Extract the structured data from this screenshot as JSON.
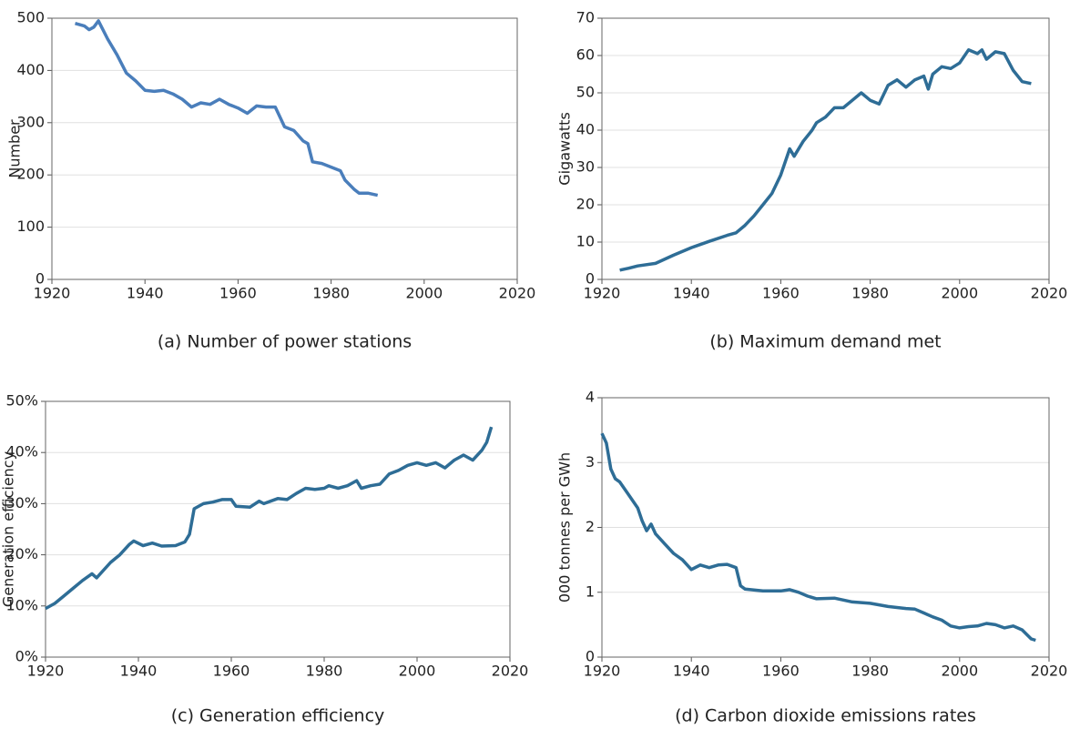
{
  "chart_data": [
    {
      "type": "line",
      "title": "(a) Number of power stations",
      "ylabel": "Number",
      "color": "#4a7ebb",
      "grid": true,
      "x": [
        1925,
        1927,
        1928,
        1929,
        1930,
        1932,
        1934,
        1936,
        1938,
        1940,
        1942,
        1944,
        1946,
        1948,
        1950,
        1952,
        1954,
        1956,
        1958,
        1960,
        1962,
        1964,
        1966,
        1968,
        1970,
        1972,
        1974,
        1975,
        1976,
        1978,
        1980,
        1982,
        1983,
        1985,
        1986,
        1988,
        1990
      ],
      "values": [
        490,
        485,
        478,
        483,
        495,
        460,
        430,
        395,
        380,
        362,
        360,
        362,
        355,
        345,
        330,
        338,
        335,
        345,
        335,
        328,
        318,
        332,
        330,
        330,
        292,
        285,
        265,
        260,
        225,
        222,
        215,
        208,
        190,
        172,
        165,
        165,
        161
      ],
      "xlim": [
        1920,
        2020
      ],
      "xticks": [
        1920,
        1940,
        1960,
        1980,
        2000,
        2020
      ],
      "ylim": [
        0,
        500
      ],
      "yticks": [
        0,
        100,
        200,
        300,
        400,
        500
      ]
    },
    {
      "type": "line",
      "title": "(b) Maximum demand met",
      "ylabel": "Gigawatts",
      "color": "#2e6d96",
      "grid": true,
      "x": [
        1924,
        1926,
        1928,
        1932,
        1936,
        1940,
        1944,
        1948,
        1950,
        1952,
        1954,
        1956,
        1958,
        1960,
        1962,
        1963,
        1965,
        1967,
        1968,
        1970,
        1972,
        1974,
        1976,
        1978,
        1980,
        1982,
        1984,
        1986,
        1988,
        1990,
        1992,
        1993,
        1994,
        1996,
        1998,
        2000,
        2002,
        2004,
        2005,
        2006,
        2008,
        2010,
        2012,
        2014,
        2016
      ],
      "values": [
        2.5,
        3,
        3.6,
        4.3,
        6.5,
        8.5,
        10.2,
        11.8,
        12.5,
        14.5,
        17,
        20,
        23,
        28,
        35,
        33,
        37,
        40,
        42,
        43.5,
        46,
        46,
        48,
        50,
        48,
        47,
        52,
        53.5,
        51.5,
        53.5,
        54.5,
        51,
        55,
        57,
        56.5,
        58,
        61.5,
        60.5,
        61.5,
        59,
        61,
        60.5,
        56,
        53,
        52.5
      ],
      "xlim": [
        1920,
        2020
      ],
      "xticks": [
        1920,
        1940,
        1960,
        1980,
        2000,
        2020
      ],
      "ylim": [
        0,
        70
      ],
      "yticks": [
        0,
        10,
        20,
        30,
        40,
        50,
        60,
        70
      ]
    },
    {
      "type": "line",
      "title": "(c) Generation efficiency",
      "ylabel": "Generation efficiency",
      "color": "#2e6d96",
      "grid": true,
      "x": [
        1920,
        1922,
        1924,
        1926,
        1928,
        1930,
        1931,
        1934,
        1936,
        1938,
        1939,
        1941,
        1943,
        1945,
        1948,
        1950,
        1951,
        1952,
        1954,
        1956,
        1958,
        1960,
        1961,
        1964,
        1966,
        1967,
        1970,
        1972,
        1974,
        1976,
        1978,
        1980,
        1981,
        1983,
        1985,
        1987,
        1988,
        1990,
        1992,
        1994,
        1996,
        1998,
        2000,
        2002,
        2004,
        2006,
        2008,
        2010,
        2012,
        2014,
        2015,
        2016
      ],
      "values": [
        9.5,
        10.5,
        12,
        13.5,
        15,
        16.3,
        15.5,
        18.5,
        20,
        22,
        22.7,
        21.8,
        22.3,
        21.7,
        21.8,
        22.5,
        24,
        29,
        30,
        30.3,
        30.8,
        30.8,
        29.5,
        29.3,
        30.5,
        30,
        31,
        30.8,
        32,
        33,
        32.8,
        33,
        33.5,
        33,
        33.5,
        34.5,
        33,
        33.5,
        33.8,
        35.8,
        36.5,
        37.5,
        38,
        37.5,
        38,
        37,
        38.5,
        39.5,
        38.5,
        40.5,
        42,
        45
      ],
      "xlim": [
        1920,
        2020
      ],
      "xticks": [
        1920,
        1940,
        1960,
        1980,
        2000,
        2020
      ],
      "ylim": [
        0,
        50
      ],
      "yticks": [
        {
          "value": 0,
          "label": "0%"
        },
        {
          "value": 10,
          "label": "10%"
        },
        {
          "value": 20,
          "label": "20%"
        },
        {
          "value": 30,
          "label": "30%"
        },
        {
          "value": 40,
          "label": "40%"
        },
        {
          "value": 50,
          "label": "50%"
        }
      ]
    },
    {
      "type": "line",
      "title": "(d) Carbon dioxide emissions rates",
      "ylabel": "000 tonnes per GWh",
      "color": "#2e6d96",
      "grid": true,
      "x": [
        1920,
        1921,
        1922,
        1923,
        1924,
        1926,
        1928,
        1929,
        1930,
        1931,
        1932,
        1934,
        1936,
        1938,
        1940,
        1942,
        1944,
        1946,
        1948,
        1950,
        1951,
        1952,
        1956,
        1960,
        1962,
        1964,
        1966,
        1968,
        1972,
        1976,
        1980,
        1984,
        1988,
        1990,
        1992,
        1994,
        1996,
        1998,
        2000,
        2002,
        2004,
        2006,
        2008,
        2010,
        2012,
        2014,
        2016,
        2017
      ],
      "values": [
        3.45,
        3.3,
        2.9,
        2.75,
        2.7,
        2.5,
        2.3,
        2.1,
        1.95,
        2.05,
        1.9,
        1.75,
        1.6,
        1.5,
        1.35,
        1.42,
        1.38,
        1.42,
        1.43,
        1.38,
        1.1,
        1.05,
        1.02,
        1.02,
        1.04,
        1.0,
        0.94,
        0.9,
        0.91,
        0.85,
        0.83,
        0.78,
        0.75,
        0.74,
        0.68,
        0.62,
        0.57,
        0.48,
        0.45,
        0.47,
        0.48,
        0.52,
        0.5,
        0.45,
        0.48,
        0.42,
        0.28,
        0.26
      ],
      "xlim": [
        1920,
        2020
      ],
      "xticks": [
        1920,
        1940,
        1960,
        1980,
        2000,
        2020
      ],
      "ylim": [
        0,
        4
      ],
      "yticks": [
        0,
        1,
        2,
        3,
        4
      ]
    }
  ]
}
